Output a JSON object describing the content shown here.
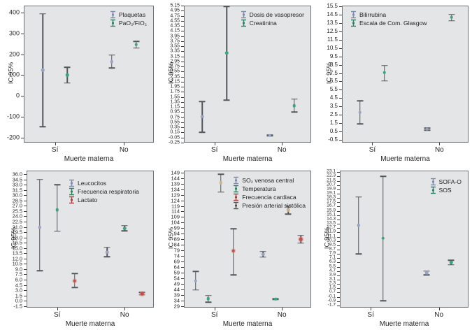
{
  "figure": {
    "background": "#ffffff",
    "plot_background": "#e4e5e7",
    "axis_color": "#6f7174",
    "bar_color": "#53575a",
    "x_axis_label": "Muerte materna",
    "y_axis_label": "IC 95%",
    "categories": [
      "Sí",
      "No"
    ]
  },
  "chart_data": [
    {
      "type": "errorbar",
      "position": "top-left",
      "ylabel": "IC 95%",
      "xlabel": "Muerte materna",
      "categories": [
        "Sí",
        "No"
      ],
      "yticks": [
        "400",
        "300",
        "200",
        "100",
        "0",
        "-100",
        "-200"
      ],
      "ylim": [
        -225,
        435
      ],
      "legend_position": "top-right",
      "series": [
        {
          "name": "Plaquetas",
          "color": "#9aa4c2",
          "legend_color": "#7e89ab",
          "slot": 0,
          "points": [
            {
              "category": "Sí",
              "low": -148,
              "mid": 124,
              "high": 395
            },
            {
              "category": "No",
              "low": 135,
              "mid": 165,
              "high": 197
            }
          ]
        },
        {
          "name": "PaO₂/FiO₂",
          "color": "#3ea47d",
          "legend_color": "#2c8261",
          "slot": 1,
          "points": [
            {
              "category": "Sí",
              "low": 62,
              "mid": 100,
              "high": 137
            },
            {
              "category": "No",
              "low": 230,
              "mid": 247,
              "high": 263
            }
          ]
        }
      ]
    },
    {
      "type": "errorbar",
      "position": "top-middle",
      "ylabel": "IC 95%",
      "xlabel": "Muerte materna",
      "categories": [
        "Sí",
        "No"
      ],
      "yticks": [
        "5.15",
        "4.95",
        "4.75",
        "4.55",
        "4.35",
        "4.15",
        "3.95",
        "3.75",
        "3.55",
        "3.35",
        "3.15",
        "2.95",
        "2.75",
        "2.55",
        "2.35",
        "2.15",
        "1.95",
        "1.75",
        "1.55",
        "1.35",
        "1.15",
        "0.95",
        "0.75",
        "0.55",
        "0.35",
        "0.15",
        "-0.05",
        "-0.25"
      ],
      "ylim": [
        -0.25,
        5.15
      ],
      "legend_position": "top-right",
      "series": [
        {
          "name": "Dosis de vasopresor",
          "color": "#9aa4c2",
          "legend_color": "#7e89ab",
          "slot": 0,
          "points": [
            {
              "category": "Sí",
              "low": 0.15,
              "mid": 0.77,
              "high": 1.37
            },
            {
              "category": "No",
              "low": 0.01,
              "mid": 0.03,
              "high": 0.05
            }
          ]
        },
        {
          "name": "Creatinina",
          "color": "#3ea47d",
          "legend_color": "#2c8261",
          "slot": 1,
          "points": [
            {
              "category": "Sí",
              "low": 1.42,
              "mid": 3.28,
              "high": 5.15
            },
            {
              "category": "No",
              "low": 0.95,
              "mid": 1.21,
              "high": 1.47
            }
          ]
        }
      ]
    },
    {
      "type": "errorbar",
      "position": "top-right",
      "ylabel": "IC 95%",
      "xlabel": "Muerte materna",
      "categories": [
        "Sí",
        "No"
      ],
      "yticks": [
        "15.5",
        "14.5",
        "13.5",
        "12.5",
        "11.5",
        "10.5",
        "9.5",
        "8.5",
        "7.5",
        "6.5",
        "5.5",
        "4.5",
        "3.5",
        "2.5",
        "1.5",
        "0.5",
        "-0.5"
      ],
      "ylim": [
        -0.8,
        15.55
      ],
      "legend_position": "top-left",
      "series": [
        {
          "name": "Bilirrubina",
          "color": "#9aa4c2",
          "legend_color": "#7e89ab",
          "slot": 0,
          "points": [
            {
              "category": "Sí",
              "low": 1.45,
              "mid": 2.8,
              "high": 4.2
            },
            {
              "category": "No",
              "low": 0.7,
              "mid": 0.8,
              "high": 0.92
            }
          ]
        },
        {
          "name": "Escala de Com. Glasgow",
          "color": "#3ea47d",
          "legend_color": "#2c8261",
          "slot": 1,
          "points": [
            {
              "category": "Sí",
              "low": 6.55,
              "mid": 7.55,
              "high": 8.4
            },
            {
              "category": "No",
              "low": 13.75,
              "mid": 14.15,
              "high": 14.5
            }
          ]
        }
      ]
    },
    {
      "type": "errorbar",
      "position": "bottom-left",
      "ylabel": "IC 95%",
      "xlabel": "Muerte materna",
      "categories": [
        "Sí",
        "No"
      ],
      "yticks": [
        "36.0",
        "34.5",
        "33.0",
        "31.5",
        "30.0",
        "28.5",
        "27.0",
        "25.5",
        "24.0",
        "22.5",
        "21.0",
        "19.5",
        "18.0",
        "16.5",
        "15.0",
        "13.5",
        "12.0",
        "10.5",
        "9.0",
        "7.5",
        "6.0",
        "4.5",
        "3.0",
        "1.5",
        "0.0",
        "-1.5"
      ],
      "ylim": [
        -1.95,
        37.0
      ],
      "legend_position": "top-center",
      "series": [
        {
          "name": "Leucocitos",
          "color": "#9aa4c2",
          "legend_color": "#7e89ab",
          "slot": 0,
          "points": [
            {
              "category": "Sí",
              "low": 8.5,
              "mid": 20.9,
              "high": 34.5
            },
            {
              "category": "No",
              "low": 12.5,
              "mid": 13.8,
              "high": 15.2
            }
          ]
        },
        {
          "name": "Frecuencia respiratoria",
          "color": "#3ea47d",
          "legend_color": "#2c8261",
          "slot": 1,
          "points": [
            {
              "category": "Sí",
              "low": 19.8,
              "mid": 25.8,
              "high": 33.0
            },
            {
              "category": "No",
              "low": 19.9,
              "mid": 20.6,
              "high": 21.4
            }
          ]
        },
        {
          "name": "Lactato",
          "color": "#c1504b",
          "legend_color": "#aa3f3c",
          "slot": 2,
          "points": [
            {
              "category": "Sí",
              "low": 3.8,
              "mid": 5.7,
              "high": 7.7
            },
            {
              "category": "No",
              "low": 1.7,
              "mid": 2.0,
              "high": 2.4
            }
          ]
        }
      ]
    },
    {
      "type": "errorbar",
      "position": "bottom-middle",
      "ylabel": "IC 95%",
      "xlabel": "Muerte materna",
      "categories": [
        "Sí",
        "No"
      ],
      "yticks": [
        "149",
        "144",
        "139",
        "134",
        "129",
        "124",
        "119",
        "114",
        "109",
        "104",
        "99",
        "94",
        "89",
        "84",
        "79",
        "74",
        "69",
        "64",
        "59",
        "54",
        "49",
        "44",
        "39",
        "34",
        "29"
      ],
      "ylim": [
        27.5,
        150.8
      ],
      "legend_position": "top-right",
      "series": [
        {
          "name": "SO₂ venosa central",
          "color": "#9aa4c2",
          "legend_color": "#7e89ab",
          "slot": 0,
          "points": [
            {
              "category": "Sí",
              "low": 43.5,
              "mid": 51.5,
              "high": 60
            },
            {
              "category": "No",
              "low": 73,
              "mid": 75.5,
              "high": 78
            }
          ]
        },
        {
          "name": "Temperatura",
          "color": "#3ea47d",
          "legend_color": "#2c8261",
          "slot": 1,
          "points": [
            {
              "category": "Sí",
              "low": 32.5,
              "mid": 35.5,
              "high": 38.5
            },
            {
              "category": "No",
              "low": 34.8,
              "mid": 35.3,
              "high": 35.8
            }
          ]
        },
        {
          "name": "Frecuencia cardiaca",
          "color": "#c1504b",
          "legend_color": "#aa3f3c",
          "slot": 3,
          "points": [
            {
              "category": "Sí",
              "low": 57,
              "mid": 78.5,
              "high": 98.5
            },
            {
              "category": "No",
              "low": 85.5,
              "mid": 89,
              "high": 92.5
            }
          ]
        },
        {
          "name": "Presión arterial sistólica",
          "color": "#cbb38f",
          "legend_color": "#56524c",
          "slot": 2,
          "points": [
            {
              "category": "Sí",
              "low": 131.5,
              "mid": 140,
              "high": 147.5
            },
            {
              "category": "No",
              "low": 111.5,
              "mid": 115.5,
              "high": 119
            }
          ]
        }
      ]
    },
    {
      "type": "errorbar",
      "position": "bottom-right",
      "ylabel": "IC 95%",
      "xlabel": "Muerte materna",
      "categories": [
        "Sí",
        "No"
      ],
      "yticks": [
        "23.1",
        "22.3",
        "21.5",
        "20.7",
        "19.9",
        "19.1",
        "18.3",
        "17.5",
        "16.7",
        "15.9",
        "15.1",
        "14.3",
        "13.5",
        "12.7",
        "11.9",
        "11.1",
        "10.3",
        "9.5",
        "8.7",
        "7.9",
        "7.1",
        "6.3",
        "5.5",
        "4.7",
        "3.9",
        "3.1",
        "2.3",
        "1.5",
        "0.7",
        "-0.1",
        "-0.9",
        "-1.7"
      ],
      "ylim": [
        -2.1,
        23.4
      ],
      "legend_position": "top-right",
      "series": [
        {
          "name": "SOFA-O",
          "color": "#9aa4c2",
          "legend_color": "#7e89ab",
          "slot": 0,
          "points": [
            {
              "category": "Sí",
              "low": 7.9,
              "mid": 13.2,
              "high": 18.5
            },
            {
              "category": "No",
              "low": 4.0,
              "mid": 4.35,
              "high": 4.7
            }
          ]
        },
        {
          "name": "SOS",
          "color": "#3ea47d",
          "legend_color": "#2c8261",
          "slot": 1,
          "points": [
            {
              "category": "Sí",
              "low": -0.8,
              "mid": 10.8,
              "high": 22.3
            },
            {
              "category": "No",
              "low": 5.9,
              "mid": 6.3,
              "high": 6.7
            }
          ]
        }
      ]
    }
  ]
}
